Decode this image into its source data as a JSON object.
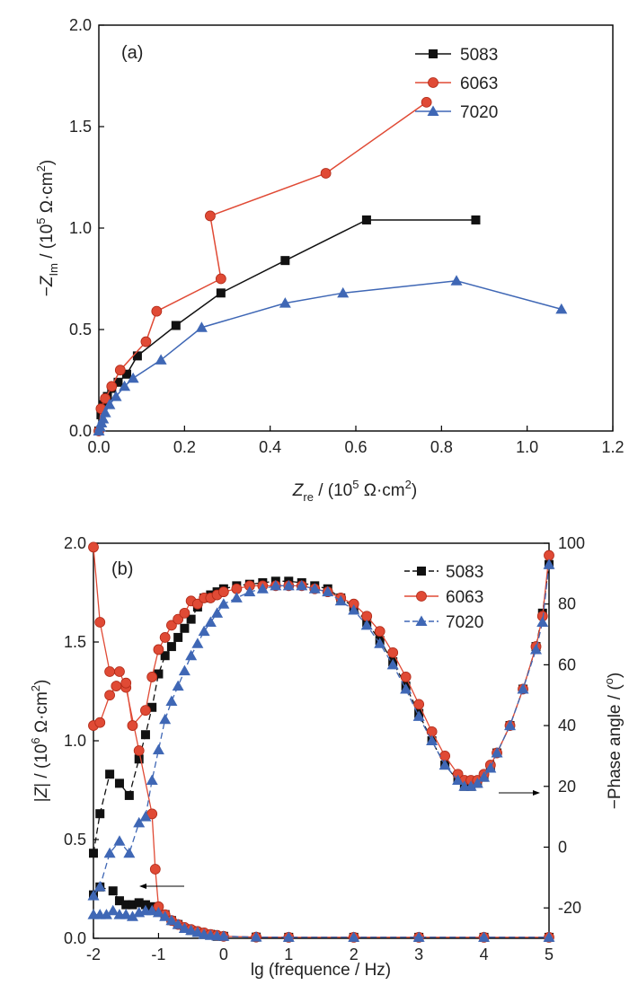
{
  "chart_data": [
    {
      "type": "scatter",
      "panel_label": "(a)",
      "xlabel": "Z_re / (10^5 Ω·cm^2)",
      "ylabel": "−Z_Im / (10^5 Ω·cm^2)",
      "xlim": [
        0,
        1.2
      ],
      "ylim": [
        0,
        2.0
      ],
      "x_ticks": [
        "0.0",
        "0.2",
        "0.4",
        "0.6",
        "0.8",
        "1.0",
        "1.2"
      ],
      "y_ticks": [
        "0.0",
        "0.5",
        "1.0",
        "1.5",
        "2.0"
      ],
      "legend_position": "top-right",
      "series": [
        {
          "name": "5083",
          "color": "#111111",
          "marker": "square",
          "points": [
            [
              0.0,
              0.0
            ],
            [
              0.005,
              0.08
            ],
            [
              0.01,
              0.13
            ],
            [
              0.02,
              0.17
            ],
            [
              0.03,
              0.21
            ],
            [
              0.045,
              0.24
            ],
            [
              0.065,
              0.28
            ],
            [
              0.09,
              0.37
            ],
            [
              0.18,
              0.52
            ],
            [
              0.285,
              0.68
            ],
            [
              0.435,
              0.84
            ],
            [
              0.625,
              1.04
            ],
            [
              0.88,
              1.04
            ]
          ]
        },
        {
          "name": "6063",
          "color": "#e04a35",
          "marker": "circle",
          "points": [
            [
              0.0,
              0.0
            ],
            [
              0.005,
              0.11
            ],
            [
              0.015,
              0.16
            ],
            [
              0.03,
              0.22
            ],
            [
              0.05,
              0.3
            ],
            [
              0.11,
              0.44
            ],
            [
              0.135,
              0.59
            ],
            [
              0.285,
              0.75
            ],
            [
              0.26,
              1.06
            ],
            [
              0.53,
              1.27
            ],
            [
              0.765,
              1.62
            ]
          ]
        },
        {
          "name": "7020",
          "color": "#3f67b5",
          "marker": "triangle",
          "points": [
            [
              0.0,
              0.0
            ],
            [
              0.003,
              0.02
            ],
            [
              0.006,
              0.04
            ],
            [
              0.01,
              0.06
            ],
            [
              0.015,
              0.09
            ],
            [
              0.025,
              0.13
            ],
            [
              0.04,
              0.17
            ],
            [
              0.06,
              0.22
            ],
            [
              0.08,
              0.26
            ],
            [
              0.145,
              0.35
            ],
            [
              0.24,
              0.51
            ],
            [
              0.435,
              0.63
            ],
            [
              0.57,
              0.68
            ],
            [
              0.835,
              0.74
            ],
            [
              1.08,
              0.6
            ]
          ]
        }
      ]
    },
    {
      "type": "line",
      "panel_label": "(b)",
      "xlabel": "lg (frequence / Hz)",
      "ylabel": "|Z| / (10^6 Ω·cm^2)",
      "ylabel_right": "−Phase angle / (°)",
      "xlim": [
        -2,
        5
      ],
      "ylim": [
        0,
        2.0
      ],
      "ylim_right": [
        -30,
        100
      ],
      "x_ticks": [
        "-2",
        "-1",
        "0",
        "1",
        "2",
        "3",
        "4",
        "5"
      ],
      "y_ticks": [
        "0.0",
        "0.5",
        "1.0",
        "1.5",
        "2.0"
      ],
      "y_ticks_right": [
        "-20",
        "0",
        "20",
        "40",
        "60",
        "80",
        "100"
      ],
      "legend_position": "top-right",
      "series": [
        {
          "name": "5083",
          "color": "#111111",
          "marker": "square",
          "modulus": [
            [
              -2.0,
              0.22
            ],
            [
              -1.9,
              0.26
            ],
            [
              -1.7,
              0.24
            ],
            [
              -1.6,
              0.19
            ],
            [
              -1.5,
              0.17
            ],
            [
              -1.4,
              0.17
            ],
            [
              -1.3,
              0.18
            ],
            [
              -1.2,
              0.17
            ],
            [
              -1.1,
              0.16
            ],
            [
              -1.0,
              0.14
            ],
            [
              -0.9,
              0.12
            ],
            [
              -0.8,
              0.09
            ],
            [
              -0.7,
              0.07
            ],
            [
              -0.6,
              0.05
            ],
            [
              -0.5,
              0.04
            ],
            [
              -0.4,
              0.03
            ],
            [
              -0.3,
              0.02
            ],
            [
              -0.2,
              0.02
            ],
            [
              -0.1,
              0.01
            ],
            [
              0.0,
              0.01
            ],
            [
              0.5,
              0.006
            ],
            [
              1.0,
              0.005
            ],
            [
              2.0,
              0.005
            ],
            [
              3.0,
              0.005
            ],
            [
              4.0,
              0.005
            ],
            [
              5.0,
              0.005
            ]
          ],
          "phase": [
            [
              -2.0,
              -2
            ],
            [
              -1.9,
              11
            ],
            [
              -1.75,
              24
            ],
            [
              -1.6,
              21
            ],
            [
              -1.45,
              17
            ],
            [
              -1.3,
              29
            ],
            [
              -1.2,
              37
            ],
            [
              -1.1,
              46
            ],
            [
              -1.0,
              57
            ],
            [
              -0.9,
              63
            ],
            [
              -0.8,
              66
            ],
            [
              -0.7,
              69
            ],
            [
              -0.6,
              72
            ],
            [
              -0.5,
              75
            ],
            [
              -0.4,
              79
            ],
            [
              -0.3,
              82
            ],
            [
              -0.2,
              83
            ],
            [
              -0.1,
              84
            ],
            [
              0.0,
              85
            ],
            [
              0.2,
              86
            ],
            [
              0.4,
              86.5
            ],
            [
              0.6,
              87
            ],
            [
              0.8,
              87.5
            ],
            [
              1.0,
              87.5
            ],
            [
              1.2,
              87
            ],
            [
              1.4,
              86
            ],
            [
              1.6,
              85
            ],
            [
              1.8,
              82
            ],
            [
              2.0,
              79
            ],
            [
              2.2,
              74
            ],
            [
              2.4,
              68
            ],
            [
              2.6,
              61
            ],
            [
              2.8,
              53
            ],
            [
              3.0,
              44
            ],
            [
              3.2,
              35
            ],
            [
              3.4,
              27
            ],
            [
              3.6,
              22
            ],
            [
              3.7,
              20
            ],
            [
              3.8,
              20
            ],
            [
              3.9,
              21
            ],
            [
              4.0,
              23
            ],
            [
              4.1,
              26
            ],
            [
              4.2,
              31
            ],
            [
              4.4,
              40
            ],
            [
              4.6,
              52
            ],
            [
              4.8,
              66
            ],
            [
              4.9,
              77
            ],
            [
              5.0,
              93
            ]
          ]
        },
        {
          "name": "6063",
          "color": "#e04a35",
          "marker": "circle",
          "modulus": [
            [
              -2.0,
              1.98
            ],
            [
              -1.9,
              1.6
            ],
            [
              -1.75,
              1.35
            ],
            [
              -1.6,
              1.35
            ],
            [
              -1.5,
              1.27
            ],
            [
              -1.3,
              0.95
            ],
            [
              -1.1,
              0.63
            ],
            [
              -1.05,
              0.35
            ],
            [
              -1.0,
              0.16
            ],
            [
              -0.9,
              0.12
            ],
            [
              -0.8,
              0.09
            ],
            [
              -0.7,
              0.07
            ],
            [
              -0.6,
              0.055
            ],
            [
              -0.5,
              0.045
            ],
            [
              -0.4,
              0.035
            ],
            [
              -0.3,
              0.028
            ],
            [
              -0.2,
              0.02
            ],
            [
              -0.1,
              0.015
            ],
            [
              0.0,
              0.01
            ],
            [
              0.5,
              0.006
            ],
            [
              1.0,
              0.005
            ],
            [
              2.0,
              0.005
            ],
            [
              3.0,
              0.005
            ],
            [
              4.0,
              0.005
            ],
            [
              5.0,
              0.005
            ]
          ],
          "phase": [
            [
              -2.0,
              40
            ],
            [
              -1.9,
              41
            ],
            [
              -1.75,
              50
            ],
            [
              -1.65,
              53
            ],
            [
              -1.5,
              54
            ],
            [
              -1.4,
              40
            ],
            [
              -1.2,
              45
            ],
            [
              -1.1,
              56
            ],
            [
              -1.0,
              65
            ],
            [
              -0.9,
              69
            ],
            [
              -0.8,
              73
            ],
            [
              -0.7,
              75
            ],
            [
              -0.6,
              77
            ],
            [
              -0.5,
              81
            ],
            [
              -0.4,
              80
            ],
            [
              -0.3,
              82
            ],
            [
              -0.2,
              82
            ],
            [
              -0.1,
              83
            ],
            [
              0.0,
              84
            ],
            [
              0.2,
              85
            ],
            [
              0.4,
              86
            ],
            [
              0.6,
              86
            ],
            [
              0.8,
              86
            ],
            [
              1.0,
              86
            ],
            [
              1.2,
              86
            ],
            [
              1.4,
              85
            ],
            [
              1.6,
              84
            ],
            [
              1.8,
              82
            ],
            [
              2.0,
              80
            ],
            [
              2.2,
              76
            ],
            [
              2.4,
              71
            ],
            [
              2.6,
              64
            ],
            [
              2.8,
              56
            ],
            [
              3.0,
              47
            ],
            [
              3.2,
              38
            ],
            [
              3.4,
              30
            ],
            [
              3.6,
              24
            ],
            [
              3.7,
              22
            ],
            [
              3.8,
              22
            ],
            [
              3.9,
              22
            ],
            [
              4.0,
              24
            ],
            [
              4.1,
              27
            ],
            [
              4.2,
              31
            ],
            [
              4.4,
              40
            ],
            [
              4.6,
              52
            ],
            [
              4.8,
              66
            ],
            [
              4.9,
              76
            ],
            [
              5.0,
              96
            ]
          ]
        },
        {
          "name": "7020",
          "color": "#3f67b5",
          "marker": "triangle",
          "modulus": [
            [
              -2.0,
              0.12
            ],
            [
              -1.9,
              0.12
            ],
            [
              -1.8,
              0.12
            ],
            [
              -1.7,
              0.14
            ],
            [
              -1.6,
              0.12
            ],
            [
              -1.5,
              0.12
            ],
            [
              -1.4,
              0.11
            ],
            [
              -1.3,
              0.13
            ],
            [
              -1.2,
              0.14
            ],
            [
              -1.1,
              0.14
            ],
            [
              -1.0,
              0.13
            ],
            [
              -0.9,
              0.11
            ],
            [
              -0.8,
              0.09
            ],
            [
              -0.7,
              0.07
            ],
            [
              -0.6,
              0.05
            ],
            [
              -0.5,
              0.04
            ],
            [
              -0.4,
              0.03
            ],
            [
              -0.3,
              0.02
            ],
            [
              -0.2,
              0.015
            ],
            [
              -0.1,
              0.012
            ],
            [
              0.0,
              0.01
            ],
            [
              0.5,
              0.006
            ],
            [
              1.0,
              0.005
            ],
            [
              2.0,
              0.005
            ],
            [
              3.0,
              0.005
            ],
            [
              4.0,
              0.005
            ],
            [
              5.0,
              0.005
            ]
          ],
          "phase": [
            [
              -2.0,
              -16
            ],
            [
              -1.9,
              -13
            ],
            [
              -1.75,
              -2
            ],
            [
              -1.6,
              2
            ],
            [
              -1.45,
              -2
            ],
            [
              -1.3,
              8
            ],
            [
              -1.2,
              10
            ],
            [
              -1.1,
              22
            ],
            [
              -1.0,
              32
            ],
            [
              -0.9,
              42
            ],
            [
              -0.8,
              48
            ],
            [
              -0.7,
              53
            ],
            [
              -0.6,
              58
            ],
            [
              -0.5,
              63
            ],
            [
              -0.4,
              67
            ],
            [
              -0.3,
              71
            ],
            [
              -0.2,
              74
            ],
            [
              -0.1,
              77
            ],
            [
              0.0,
              80
            ],
            [
              0.2,
              82
            ],
            [
              0.4,
              84
            ],
            [
              0.6,
              85
            ],
            [
              0.8,
              86
            ],
            [
              1.0,
              86
            ],
            [
              1.2,
              86
            ],
            [
              1.4,
              85
            ],
            [
              1.6,
              84
            ],
            [
              1.8,
              81
            ],
            [
              2.0,
              78
            ],
            [
              2.2,
              73
            ],
            [
              2.4,
              67
            ],
            [
              2.6,
              60
            ],
            [
              2.8,
              52
            ],
            [
              3.0,
              43
            ],
            [
              3.2,
              35
            ],
            [
              3.4,
              27
            ],
            [
              3.6,
              22
            ],
            [
              3.7,
              20
            ],
            [
              3.8,
              20
            ],
            [
              3.9,
              21
            ],
            [
              4.0,
              23
            ],
            [
              4.1,
              26
            ],
            [
              4.2,
              31
            ],
            [
              4.4,
              40
            ],
            [
              4.6,
              52
            ],
            [
              4.8,
              65
            ],
            [
              4.9,
              74
            ],
            [
              5.0,
              93
            ]
          ]
        }
      ]
    }
  ]
}
